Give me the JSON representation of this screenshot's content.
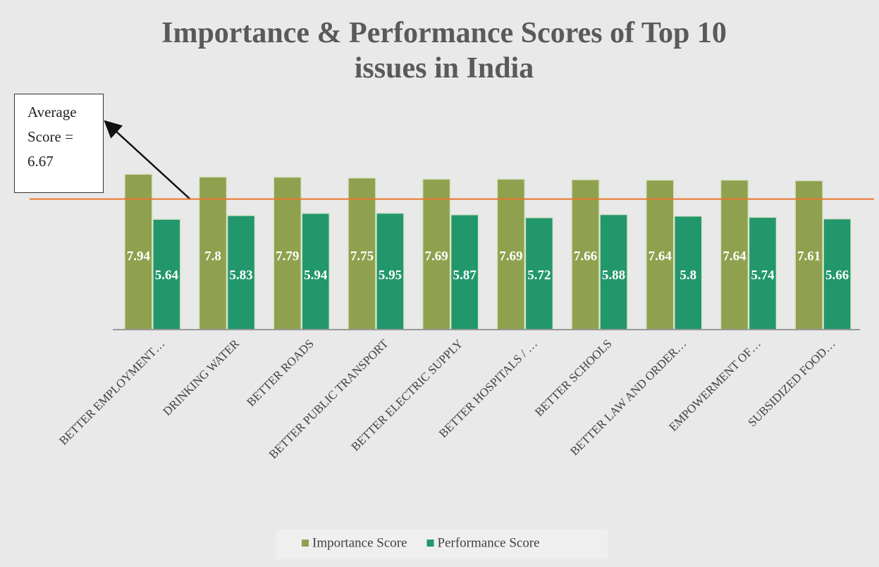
{
  "chart_data": {
    "type": "bar",
    "title": "Importance & Performance Scores of Top 10 issues in India",
    "categories": [
      "BETTER EMPLOYMENT…",
      "DRINKING WATER",
      "BETTER ROADS",
      "BETTER PUBLIC TRANSPORT",
      "BETTER ELECTRIC SUPPLY",
      "BETTER HOSPITALS / …",
      "BETTER SCHOOLS",
      "BETTER LAW AND ORDER…",
      "EMPOWERMENT OF…",
      "SUBSIDIZED FOOD…"
    ],
    "series": [
      {
        "name": "Importance Score",
        "color": "#8fa14e",
        "values": [
          7.94,
          7.8,
          7.79,
          7.75,
          7.69,
          7.69,
          7.66,
          7.64,
          7.64,
          7.61
        ]
      },
      {
        "name": "Performance Score",
        "color": "#22976c",
        "values": [
          5.64,
          5.83,
          5.94,
          5.95,
          5.87,
          5.72,
          5.88,
          5.8,
          5.74,
          5.66
        ]
      }
    ],
    "ylim": [
      0,
      10
    ],
    "annotation": {
      "text": "Average Score = 6.67",
      "value": 6.67,
      "color": "#e8772e"
    },
    "legend": "bottom"
  }
}
